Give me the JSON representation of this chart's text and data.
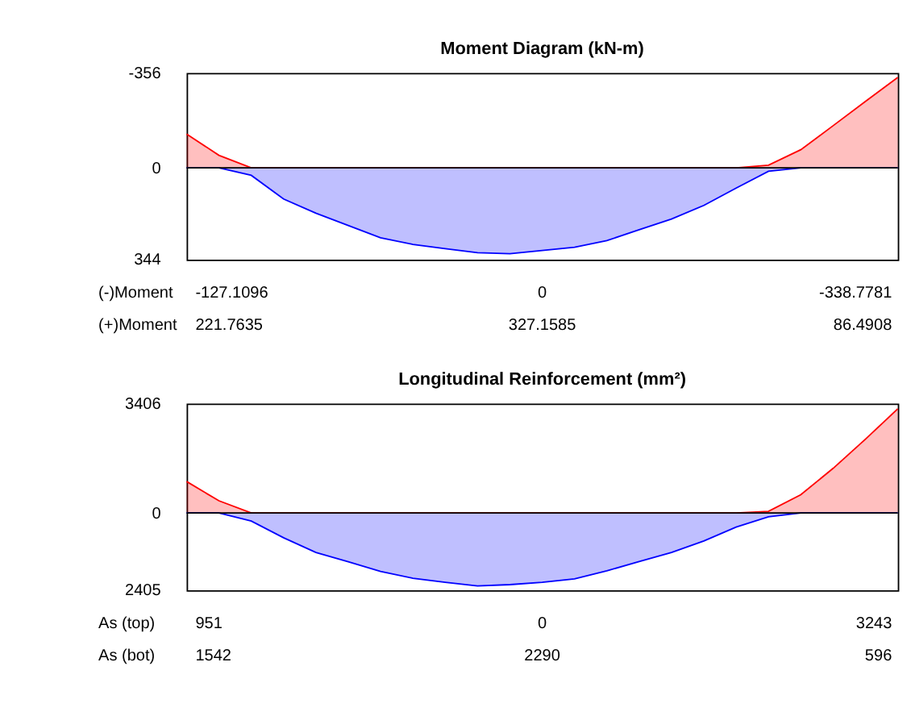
{
  "chart_data": [
    {
      "type": "area",
      "title": "Moment Diagram (kN-m)",
      "categories": [
        null,
        null,
        null,
        null,
        null,
        null,
        null,
        null,
        null,
        null,
        null,
        null,
        null,
        null,
        null,
        null,
        null,
        null,
        null,
        null,
        null,
        null,
        null
      ],
      "series": [
        {
          "color": "#ff0000",
          "values": [
            -127,
            -47,
            0,
            0,
            0,
            0,
            0,
            0,
            0,
            0,
            0,
            0,
            0,
            0,
            0,
            0,
            0,
            0,
            -10,
            -68,
            -158,
            -249,
            -339
          ]
        },
        {
          "color": "#0000ff",
          "values": [
            0,
            0,
            28,
            117,
            170,
            216,
            262,
            287,
            303,
            318,
            322,
            310,
            298,
            273,
            232,
            192,
            141,
            76,
            13,
            0,
            0,
            0,
            0
          ]
        }
      ],
      "ylim": [
        344,
        -356
      ],
      "yticks": [
        -356,
        0,
        344
      ],
      "grid": false,
      "ref_lines": [
        {
          "axis": "y",
          "value": 0,
          "color": "#000000"
        }
      ],
      "annotations": [
        "(-)Moment",
        "-127.1096",
        "0",
        "-338.7781",
        "(+)Moment",
        "221.7635",
        "327.1585",
        "86.4908"
      ]
    },
    {
      "type": "area",
      "title": "Longitudinal Reinforcement (mm²)",
      "categories": [
        null,
        null,
        null,
        null,
        null,
        null,
        null,
        null,
        null,
        null,
        null,
        null,
        null,
        null,
        null,
        null,
        null,
        null,
        null,
        null,
        null,
        null,
        null
      ],
      "series": [
        {
          "color": "#ff0000",
          "values": [
            980,
            380,
            0,
            0,
            0,
            0,
            0,
            0,
            0,
            0,
            0,
            0,
            0,
            0,
            0,
            0,
            0,
            0,
            50,
            570,
            1390,
            2300,
            3243
          ]
        },
        {
          "color": "#0000ff",
          "values": [
            0,
            0,
            -250,
            -770,
            -1230,
            -1520,
            -1820,
            -2030,
            -2160,
            -2270,
            -2230,
            -2160,
            -2050,
            -1800,
            -1510,
            -1230,
            -870,
            -440,
            -120,
            0,
            0,
            0,
            0
          ]
        }
      ],
      "ylim": [
        -2405,
        3406
      ],
      "yticks": [
        {
          "value": -2405,
          "label": "2405"
        },
        0,
        3406
      ],
      "grid": false,
      "ref_lines": [
        {
          "axis": "y",
          "value": 0,
          "color": "#000000"
        }
      ],
      "annotations": [
        "As (top)",
        "951",
        "0",
        "3243",
        "As (bot)",
        "1542",
        "2290",
        "596"
      ]
    }
  ]
}
